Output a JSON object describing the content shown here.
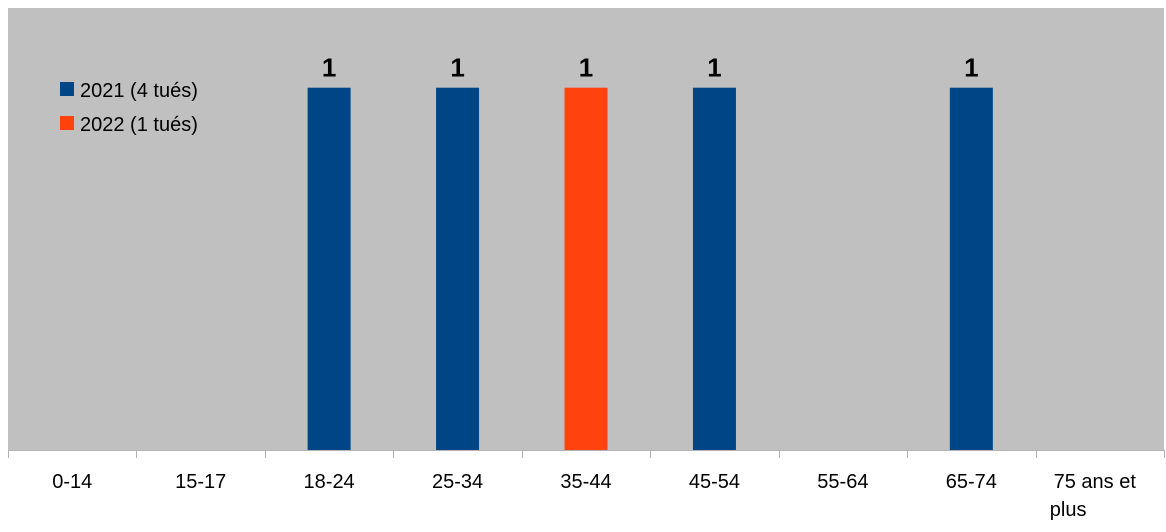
{
  "chart_data": {
    "type": "bar",
    "title": "",
    "xlabel": "",
    "ylabel": "",
    "categories": [
      "0-14",
      "15-17",
      "18-24",
      "25-34",
      "35-44",
      "45-54",
      "55-64",
      "65-74",
      "75 ans et plus"
    ],
    "ylim": [
      0,
      1.22
    ],
    "grid": false,
    "legend_placement": "top-left",
    "series": [
      {
        "name": "2021 (4 tués)",
        "color": "#004586",
        "values": [
          0,
          0,
          1,
          1,
          0,
          1,
          0,
          1,
          0
        ]
      },
      {
        "name": "2022 (1 tués)",
        "color": "#ff420e",
        "values": [
          0,
          0,
          0,
          0,
          1,
          0,
          0,
          0,
          0
        ]
      }
    ],
    "data_labels": [
      {
        "series": 0,
        "category": "18-24",
        "text": "1"
      },
      {
        "series": 0,
        "category": "25-34",
        "text": "1"
      },
      {
        "series": 1,
        "category": "35-44",
        "text": "1"
      },
      {
        "series": 0,
        "category": "45-54",
        "text": "1"
      },
      {
        "series": 0,
        "category": "65-74",
        "text": "1"
      }
    ],
    "plot_background": "#c0c0c0",
    "axis_color": "#b3b3b3"
  }
}
